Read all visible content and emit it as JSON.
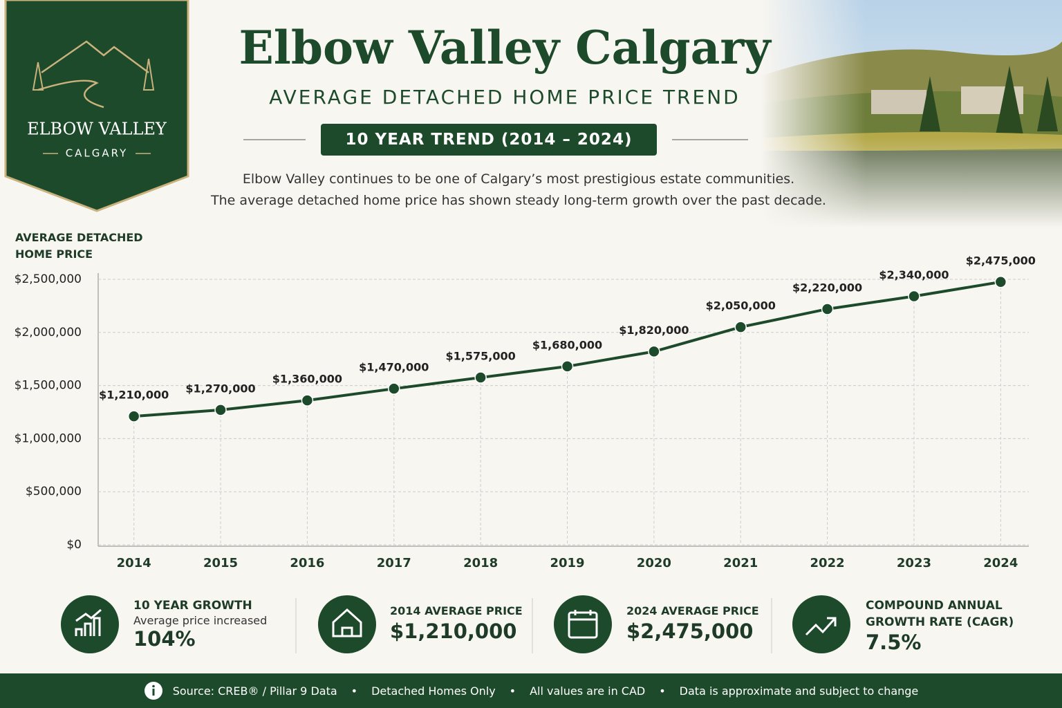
{
  "header": {
    "badge_title": "ELBOW VALLEY",
    "badge_subtitle": "CALGARY",
    "title": "Elbow Valley Calgary",
    "subtitle": "AVERAGE DETACHED HOME PRICE TREND",
    "pill": "10 YEAR TREND (2014 – 2024)",
    "description": [
      "Elbow Valley continues to be one of Calgary’s most prestigious estate communities.",
      "The average detached home price has shown steady long-term growth over the past decade."
    ]
  },
  "chart_data": {
    "type": "line",
    "y_label": "AVERAGE DETACHED HOME PRICE",
    "categories": [
      "2014",
      "2015",
      "2016",
      "2017",
      "2018",
      "2019",
      "2020",
      "2021",
      "2022",
      "2023",
      "2024"
    ],
    "values": [
      1210000,
      1270000,
      1360000,
      1470000,
      1575000,
      1680000,
      1820000,
      2050000,
      2220000,
      2340000,
      2475000
    ],
    "value_labels": [
      "$1,210,000",
      "$1,270,000",
      "$1,360,000",
      "$1,470,000",
      "$1,575,000",
      "$1,680,000",
      "$1,820,000",
      "$2,050,000",
      "$2,220,000",
      "$2,340,000",
      "$2,475,000"
    ],
    "color": "#1d4a2b",
    "ylim": [
      0,
      2600000
    ],
    "yticks": [
      {
        "value": 0,
        "label": "$0"
      },
      {
        "value": 500000,
        "label": "$500,000"
      },
      {
        "value": 1000000,
        "label": "$1,000,000"
      },
      {
        "value": 1500000,
        "label": "$1,500,000"
      },
      {
        "value": 2000000,
        "label": "$2,000,000"
      },
      {
        "value": 2500000,
        "label": "$2,500,000"
      }
    ],
    "grid": true
  },
  "stats": [
    {
      "label": "10 YEAR GROWTH",
      "note": "Average price increased",
      "value": "104%"
    },
    {
      "label": "2014 AVERAGE PRICE",
      "value": "$1,210,000"
    },
    {
      "label": "2024 AVERAGE PRICE",
      "value": "$2,475,000"
    },
    {
      "label": "COMPOUND ANNUAL GROWTH RATE (CAGR)",
      "value": "7.5%"
    }
  ],
  "footer": [
    "Source: CREB® / Pillar 9 Data",
    "Detached Homes Only",
    "All values are in CAD",
    "Data is approximate and subject to change"
  ]
}
